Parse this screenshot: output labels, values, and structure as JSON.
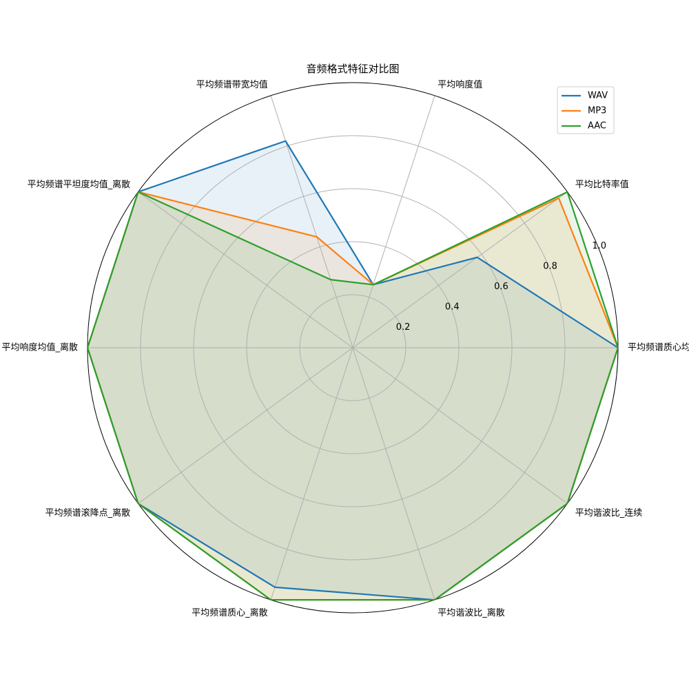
{
  "chart_data": {
    "type": "radar",
    "title": "音频格式特征对比图",
    "axes": [
      "平均频谱质心均值",
      "平均比特率值",
      "平均响度值",
      "平均频谱带宽均值",
      "平均频谱平坦度均值_离散",
      "平均响度均值_离散",
      "平均频谱滚降点_离散",
      "平均频谱质心_离散",
      "平均谐波比_离散",
      "平均谐波比_连续"
    ],
    "rlim": [
      0,
      1.0
    ],
    "rticks": [
      0.2,
      0.4,
      0.6,
      0.8,
      1.0
    ],
    "rtick_labels": [
      "0.2",
      "0.4",
      "0.6",
      "0.8",
      "1.0"
    ],
    "grid": true,
    "legend_position": "top-right",
    "series": [
      {
        "name": "WAV",
        "color": "#1f77b4",
        "values": [
          1.0,
          0.58,
          0.25,
          0.82,
          1.0,
          1.0,
          1.0,
          0.95,
          1.0,
          1.0
        ]
      },
      {
        "name": "MP3",
        "color": "#ff7f0e",
        "values": [
          1.0,
          0.96,
          0.25,
          0.44,
          1.0,
          1.0,
          1.0,
          1.0,
          1.0,
          1.0
        ]
      },
      {
        "name": "AAC",
        "color": "#2ca02c",
        "values": [
          1.0,
          1.0,
          0.25,
          0.27,
          1.0,
          1.0,
          1.0,
          1.0,
          1.0,
          1.0
        ]
      }
    ]
  }
}
